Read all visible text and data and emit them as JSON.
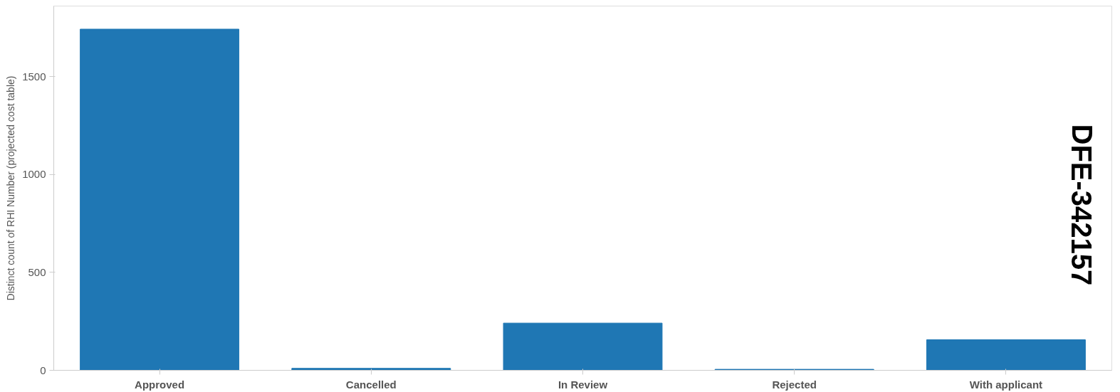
{
  "chart_data": {
    "type": "bar",
    "ylabel": "Distinct count of RHI Number (projected cost table)",
    "categories": [
      "Approved",
      "Cancelled",
      "In Review",
      "Rejected",
      "With applicant"
    ],
    "values": [
      1742,
      10,
      241,
      5,
      156
    ],
    "color": "#1f77b4",
    "ylim": [
      0,
      1860
    ],
    "yticks": [
      0,
      500,
      1000,
      1500
    ],
    "grid": false,
    "annotations": [
      "DFE-342157"
    ]
  }
}
